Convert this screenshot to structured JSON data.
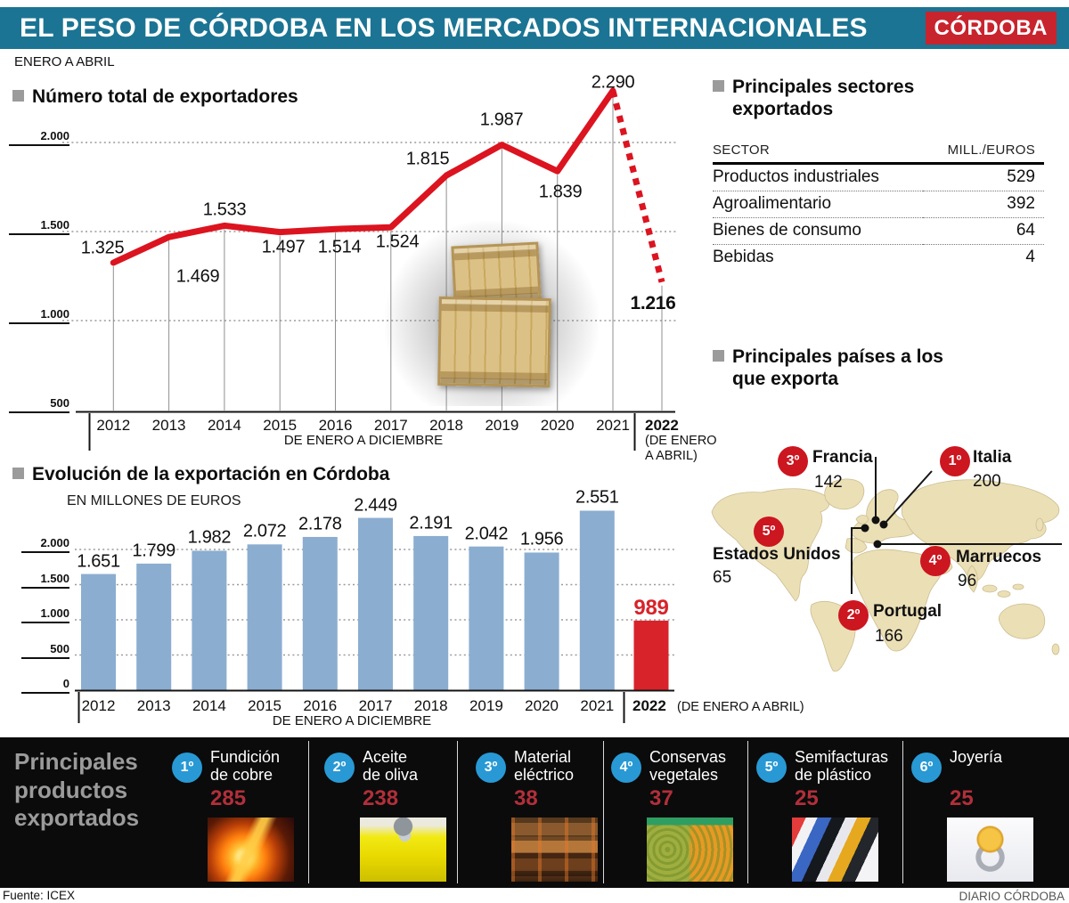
{
  "header": {
    "title": "EL PESO DE CÓRDOBA EN LOS MERCADOS INTERNACIONALES",
    "logo": "CÓRDOBA",
    "period": "ENERO A ABRIL"
  },
  "chart_data": [
    {
      "id": "exporters",
      "type": "line",
      "title": "Número total de exportadores",
      "xlabel": "DE ENERO A DICIEMBRE",
      "last_note": "(DE ENERO A ABRIL)",
      "categories": [
        "2012",
        "2013",
        "2014",
        "2015",
        "2016",
        "2017",
        "2018",
        "2019",
        "2020",
        "2021",
        "2022"
      ],
      "values": [
        1325,
        1469,
        1533,
        1497,
        1514,
        1524,
        1815,
        1987,
        1839,
        2290,
        1216
      ],
      "labels": [
        "1.325",
        "1.469",
        "1.533",
        "1.497",
        "1.514",
        "1.524",
        "1.815",
        "1.987",
        "1.839",
        "2.290",
        "1.216"
      ],
      "yticks": [
        500,
        1000,
        1500,
        2000
      ],
      "ytick_labels": [
        "500",
        "1.000",
        "1.500",
        "2.000"
      ],
      "ylim": [
        500,
        2300
      ],
      "grid": "dotted",
      "line_color": "#dc1420",
      "last_segment_style": "dashed"
    },
    {
      "id": "exports",
      "type": "bar",
      "title": "Evolución de la exportación en Córdoba",
      "subtitle": "EN MILLONES DE EUROS",
      "xlabel": "DE ENERO A DICIEMBRE",
      "last_note": "(DE ENERO A ABRIL)",
      "categories": [
        "2012",
        "2013",
        "2014",
        "2015",
        "2016",
        "2017",
        "2018",
        "2019",
        "2020",
        "2021",
        "2022"
      ],
      "values": [
        1651,
        1799,
        1982,
        2072,
        2178,
        2449,
        2191,
        2042,
        1956,
        2551,
        989
      ],
      "labels": [
        "1.651",
        "1.799",
        "1.982",
        "2.072",
        "2.178",
        "2.449",
        "2.191",
        "2.042",
        "1.956",
        "2.551",
        "989"
      ],
      "yticks": [
        0,
        500,
        1000,
        1500,
        2000
      ],
      "ytick_labels": [
        "0",
        "500",
        "1.000",
        "1.500",
        "2.000"
      ],
      "ylim": [
        0,
        2600
      ],
      "grid": "dotted",
      "bar_color": "#8badd0",
      "last_bar_color": "#d8232a"
    },
    {
      "id": "sectors",
      "type": "table",
      "title": "Principales sectores exportados",
      "columns": [
        "SECTOR",
        "MILL./EUROS"
      ],
      "rows": [
        [
          "Productos industriales",
          "529"
        ],
        [
          "Agroalimentario",
          "392"
        ],
        [
          "Bienes de consumo",
          "64"
        ],
        [
          "Bebidas",
          "4"
        ]
      ]
    }
  ],
  "countries": {
    "title": "Principales países a los que exporta",
    "items": [
      {
        "rank": "1º",
        "name": "Italia",
        "value": "200"
      },
      {
        "rank": "2º",
        "name": "Portugal",
        "value": "166"
      },
      {
        "rank": "3º",
        "name": "Francia",
        "value": "142"
      },
      {
        "rank": "4º",
        "name": "Marruecos",
        "value": "96"
      },
      {
        "rank": "5º",
        "name": "Estados Unidos",
        "value": "65"
      }
    ]
  },
  "products": {
    "title": "Principales productos exportados",
    "items": [
      {
        "rank": "1º",
        "name": "Fundición\nde cobre",
        "value": "285",
        "photo": "copper-smelting"
      },
      {
        "rank": "2º",
        "name": "Aceite\nde oliva",
        "value": "238",
        "photo": "olive-oil"
      },
      {
        "rank": "3º",
        "name": "Material\neléctrico",
        "value": "38",
        "photo": "electrical-material"
      },
      {
        "rank": "4º",
        "name": "Conservas\nvegetales",
        "value": "37",
        "photo": "canned-vegetables"
      },
      {
        "rank": "5º",
        "name": "Semifacturas\nde plástico",
        "value": "25",
        "photo": "plastic-tubes"
      },
      {
        "rank": "6º",
        "name": "Joyería",
        "value": "25",
        "photo": "jewelry-ring"
      }
    ]
  },
  "footer": {
    "source": "Fuente: ICEX",
    "credit": "DIARIO CÓRDOBA"
  }
}
